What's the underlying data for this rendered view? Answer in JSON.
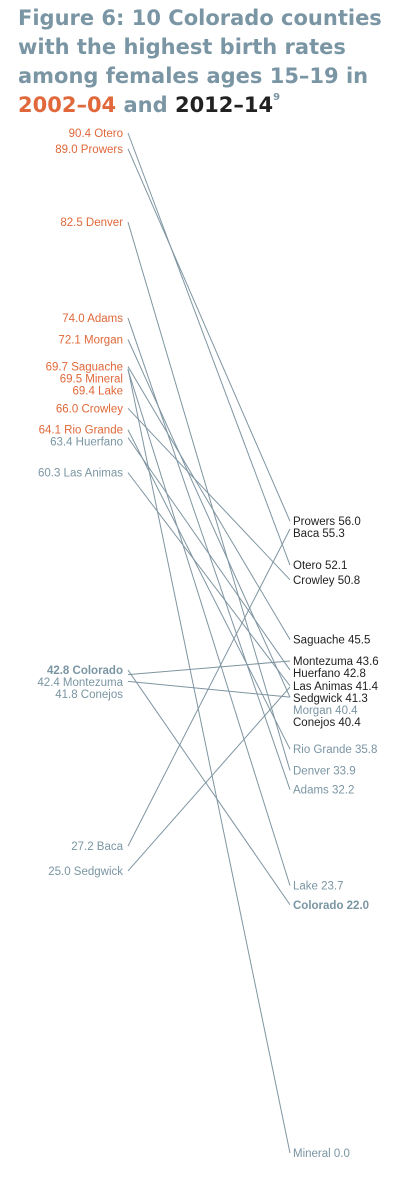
{
  "title": {
    "prefix": "Figure 6: 10 Colorado counties with the highest birth rates among females ages 15–19 in ",
    "period1": "2002–04",
    "connector": " and ",
    "period2": "2012–14",
    "footnote": "9"
  },
  "colors": {
    "title": "#7a95a3",
    "period1": "#e0683a",
    "period2": "#222222",
    "line": "#7f95a1",
    "label_gray": "#7a95a3"
  },
  "chart_data": {
    "type": "slope",
    "series": [
      {
        "name": "2002–04",
        "color": "#e0683a"
      },
      {
        "name": "2012–14",
        "color": "#222222"
      }
    ],
    "rows": [
      {
        "name": "Otero",
        "left": 90.4,
        "right": 52.1,
        "left_label": "90.4 Otero",
        "right_label": "Otero 52.1",
        "left_color": "#e0683a",
        "right_color": "#222222"
      },
      {
        "name": "Prowers",
        "left": 89.0,
        "right": 56.0,
        "left_label": "89.0 Prowers",
        "right_label": "Prowers 56.0",
        "left_color": "#e0683a",
        "right_color": "#222222"
      },
      {
        "name": "Denver",
        "left": 82.5,
        "right": 33.9,
        "left_label": "82.5 Denver",
        "right_label": "Denver 33.9",
        "left_color": "#e0683a",
        "right_color": "#7a95a3"
      },
      {
        "name": "Adams",
        "left": 74.0,
        "right": 32.2,
        "left_label": "74.0 Adams",
        "right_label": "Adams 32.2",
        "left_color": "#e0683a",
        "right_color": "#7a95a3"
      },
      {
        "name": "Morgan",
        "left": 72.1,
        "right": 40.4,
        "left_label": "72.1 Morgan",
        "right_label": "Morgan 40.4",
        "left_color": "#e0683a",
        "right_color": "#7a95a3"
      },
      {
        "name": "Saguache",
        "left": 69.7,
        "right": 45.5,
        "left_label": "69.7 Saguache",
        "right_label": "Saguache 45.5",
        "left_color": "#e0683a",
        "right_color": "#222222"
      },
      {
        "name": "Mineral",
        "left": 69.5,
        "right": 0.0,
        "left_label": "69.5 Mineral",
        "right_label": "Mineral 0.0",
        "left_color": "#e0683a",
        "right_color": "#7a95a3"
      },
      {
        "name": "Lake",
        "left": 69.4,
        "right": 23.7,
        "left_label": "69.4 Lake",
        "right_label": "Lake 23.7",
        "left_color": "#e0683a",
        "right_color": "#7a95a3"
      },
      {
        "name": "Crowley",
        "left": 66.0,
        "right": 50.8,
        "left_label": "66.0 Crowley",
        "right_label": "Crowley 50.8",
        "left_color": "#e0683a",
        "right_color": "#222222"
      },
      {
        "name": "Rio Grande",
        "left": 64.1,
        "right": 35.8,
        "left_label": "64.1 Rio Grande",
        "right_label": "Rio Grande 35.8",
        "left_color": "#e0683a",
        "right_color": "#7a95a3"
      },
      {
        "name": "Huerfano",
        "left": 63.4,
        "right": 42.8,
        "left_label": "63.4 Huerfano",
        "right_label": "Huerfano 42.8",
        "left_color": "#7a95a3",
        "right_color": "#222222"
      },
      {
        "name": "Las Animas",
        "left": 60.3,
        "right": 41.4,
        "left_label": "60.3 Las Animas",
        "right_label": "Las Animas 41.4",
        "left_color": "#7a95a3",
        "right_color": "#222222"
      },
      {
        "name": "Colorado",
        "left": 42.8,
        "right": 22.0,
        "left_label": "42.8 Colorado",
        "right_label": "Colorado 22.0",
        "left_color": "#7a95a3",
        "right_color": "#7a95a3",
        "bold": true
      },
      {
        "name": "Montezuma",
        "left": 42.4,
        "right": 43.6,
        "left_label": "42.4 Montezuma",
        "right_label": "Montezuma 43.6",
        "left_color": "#7a95a3",
        "right_color": "#222222"
      },
      {
        "name": "Conejos",
        "left": 41.8,
        "right": 40.4,
        "left_label": "41.8 Conejos",
        "right_label": "Conejos 40.4",
        "left_color": "#7a95a3",
        "right_color": "#222222"
      },
      {
        "name": "Sedgwick",
        "left": 25.0,
        "right": 41.3,
        "left_label": "25.0 Sedgwick",
        "right_label": "Sedgwick 41.3",
        "left_color": "#7a95a3",
        "right_color": "#222222"
      },
      {
        "name": "Baca",
        "left": 27.2,
        "right": 55.3,
        "left_label": "27.2 Baca",
        "right_label": "Baca 55.3",
        "left_color": "#7a95a3",
        "right_color": "#222222"
      }
    ]
  }
}
